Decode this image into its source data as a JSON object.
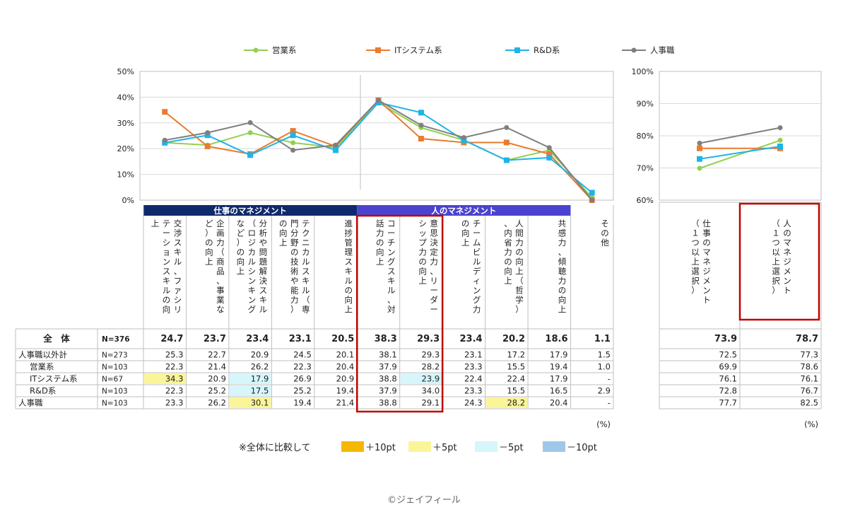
{
  "legend": {
    "series": [
      {
        "name": "営業系",
        "color": "#92d050",
        "marker": "dot"
      },
      {
        "name": "ITシステム系",
        "color": "#e97c2f",
        "marker": "square"
      },
      {
        "name": "R&D系",
        "color": "#1fb4e8",
        "marker": "square"
      },
      {
        "name": "人事職",
        "color": "#7f7f7f",
        "marker": "dot"
      }
    ]
  },
  "chart_data": [
    {
      "type": "line",
      "title": "",
      "xlabel": "",
      "ylabel": "",
      "ylim": [
        0,
        50
      ],
      "yticks": [
        "0%",
        "10%",
        "20%",
        "30%",
        "40%",
        "50%"
      ],
      "categories": [
        "交渉スキル、ファシリテーションスキルの向上",
        "企画力（商品、事業など）の向上",
        "分析や問題解決スキル（ロジカルシンキングなど）の向上",
        "テクニカルスキル（専門分野の技術や能力）の向上",
        "進捗管理スキルの向上",
        "コーチングスキル、対話力の向上",
        "意思決定力、リーダーシップ力の向上",
        "チームビルディング力の向上",
        "人間力の向上（哲学）、内省力の向上",
        "共感力、傾聴力の向上",
        "その他"
      ],
      "series": [
        {
          "name": "営業系",
          "values": [
            22.3,
            21.4,
            26.2,
            22.3,
            20.4,
            37.9,
            28.2,
            23.3,
            15.5,
            19.4,
            1.0
          ]
        },
        {
          "name": "ITシステム系",
          "values": [
            34.3,
            20.9,
            17.9,
            26.9,
            20.9,
            38.8,
            23.9,
            22.4,
            22.4,
            17.9,
            0.0
          ]
        },
        {
          "name": "R&D系",
          "values": [
            22.3,
            25.2,
            17.5,
            25.2,
            19.4,
            37.9,
            34.0,
            23.3,
            15.5,
            16.5,
            2.9
          ]
        },
        {
          "name": "人事職",
          "values": [
            23.3,
            26.2,
            30.1,
            19.4,
            21.4,
            38.8,
            29.1,
            24.3,
            28.2,
            20.4,
            0.0
          ]
        }
      ]
    },
    {
      "type": "line",
      "title": "",
      "xlabel": "",
      "ylabel": "",
      "ylim": [
        60,
        100
      ],
      "yticks": [
        "60%",
        "70%",
        "80%",
        "90%",
        "100%"
      ],
      "categories": [
        "仕事のマネジメント（１つ以上選択）",
        "人のマネジメント（１つ以上選択）"
      ],
      "series": [
        {
          "name": "営業系",
          "values": [
            69.9,
            78.6
          ]
        },
        {
          "name": "ITシステム系",
          "values": [
            76.1,
            76.1
          ]
        },
        {
          "name": "R&D系",
          "values": [
            72.8,
            76.7
          ]
        },
        {
          "name": "人事職",
          "values": [
            77.7,
            82.5
          ]
        }
      ]
    }
  ],
  "groups": {
    "work": "仕事のマネジメント",
    "people": "人のマネジメント"
  },
  "table": {
    "rows": [
      {
        "label": "全　体",
        "n": "N=376",
        "values": [
          "24.7",
          "23.7",
          "23.4",
          "23.1",
          "20.5",
          "38.3",
          "29.3",
          "23.4",
          "20.2",
          "18.6",
          "1.1"
        ],
        "side": [
          "73.9",
          "78.7"
        ]
      },
      {
        "label": "人事職以外計",
        "n": "N=273",
        "values": [
          "25.3",
          "22.7",
          "20.9",
          "24.5",
          "20.1",
          "38.1",
          "29.3",
          "23.1",
          "17.2",
          "17.9",
          "1.5"
        ],
        "side": [
          "72.5",
          "77.3"
        ]
      },
      {
        "label": "営業系",
        "n": "N=103",
        "values": [
          "22.3",
          "21.4",
          "26.2",
          "22.3",
          "20.4",
          "37.9",
          "28.2",
          "23.3",
          "15.5",
          "19.4",
          "1.0"
        ],
        "side": [
          "69.9",
          "78.6"
        ]
      },
      {
        "label": "ITシステム系",
        "n": "N=67",
        "values": [
          "34.3",
          "20.9",
          "17.9",
          "26.9",
          "20.9",
          "38.8",
          "23.9",
          "22.4",
          "22.4",
          "17.9",
          "-"
        ],
        "side": [
          "76.1",
          "76.1"
        ]
      },
      {
        "label": "R&D系",
        "n": "N=103",
        "values": [
          "22.3",
          "25.2",
          "17.5",
          "25.2",
          "19.4",
          "37.9",
          "34.0",
          "23.3",
          "15.5",
          "16.5",
          "2.9"
        ],
        "side": [
          "72.8",
          "76.7"
        ]
      },
      {
        "label": "人事職",
        "n": "N=103",
        "values": [
          "23.3",
          "26.2",
          "30.1",
          "19.4",
          "21.4",
          "38.8",
          "29.1",
          "24.3",
          "28.2",
          "20.4",
          "-"
        ],
        "side": [
          "77.7",
          "82.5"
        ]
      }
    ],
    "highlights": [
      {
        "row": 3,
        "col": 0,
        "level": "+5pt"
      },
      {
        "row": 3,
        "col": 2,
        "level": "-5pt"
      },
      {
        "row": 3,
        "col": 6,
        "level": "-5pt"
      },
      {
        "row": 4,
        "col": 2,
        "level": "-5pt"
      },
      {
        "row": 5,
        "col": 2,
        "level": "+5pt"
      },
      {
        "row": 5,
        "col": 8,
        "level": "+5pt"
      }
    ],
    "unit": "(%)"
  },
  "key": {
    "label": "※全体に比較して",
    "items": [
      {
        "text": "＋10pt",
        "color": "#f5b800"
      },
      {
        "text": "＋5pt",
        "color": "#fbf59a"
      },
      {
        "text": "－5pt",
        "color": "#d6f6fb"
      },
      {
        "text": "－10pt",
        "color": "#9fc7ea"
      }
    ]
  },
  "copyright": "©ジェイフィール"
}
